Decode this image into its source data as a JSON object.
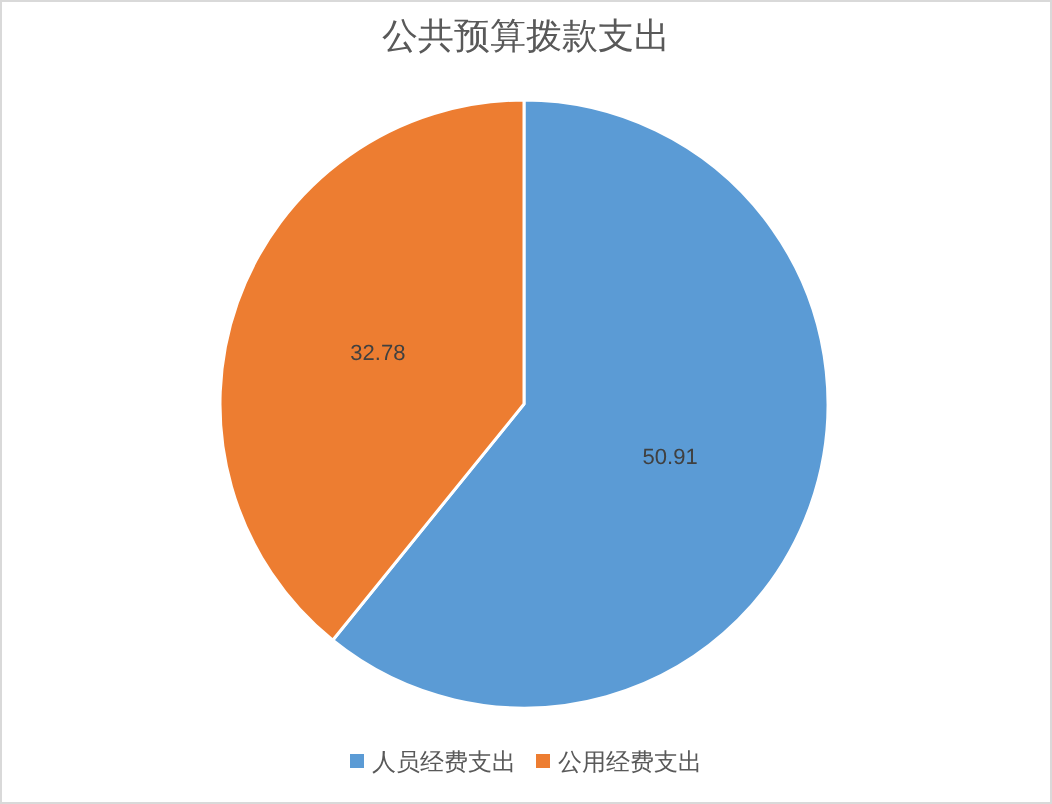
{
  "chart_data": {
    "type": "pie",
    "title": "公共预算拨款支出",
    "categories": [
      "人员经费支出",
      "公用经费支出"
    ],
    "values": [
      50.91,
      32.78
    ],
    "colors": [
      "#5b9bd5",
      "#ed7d31"
    ],
    "data_labels": true,
    "legend": "bottom"
  }
}
